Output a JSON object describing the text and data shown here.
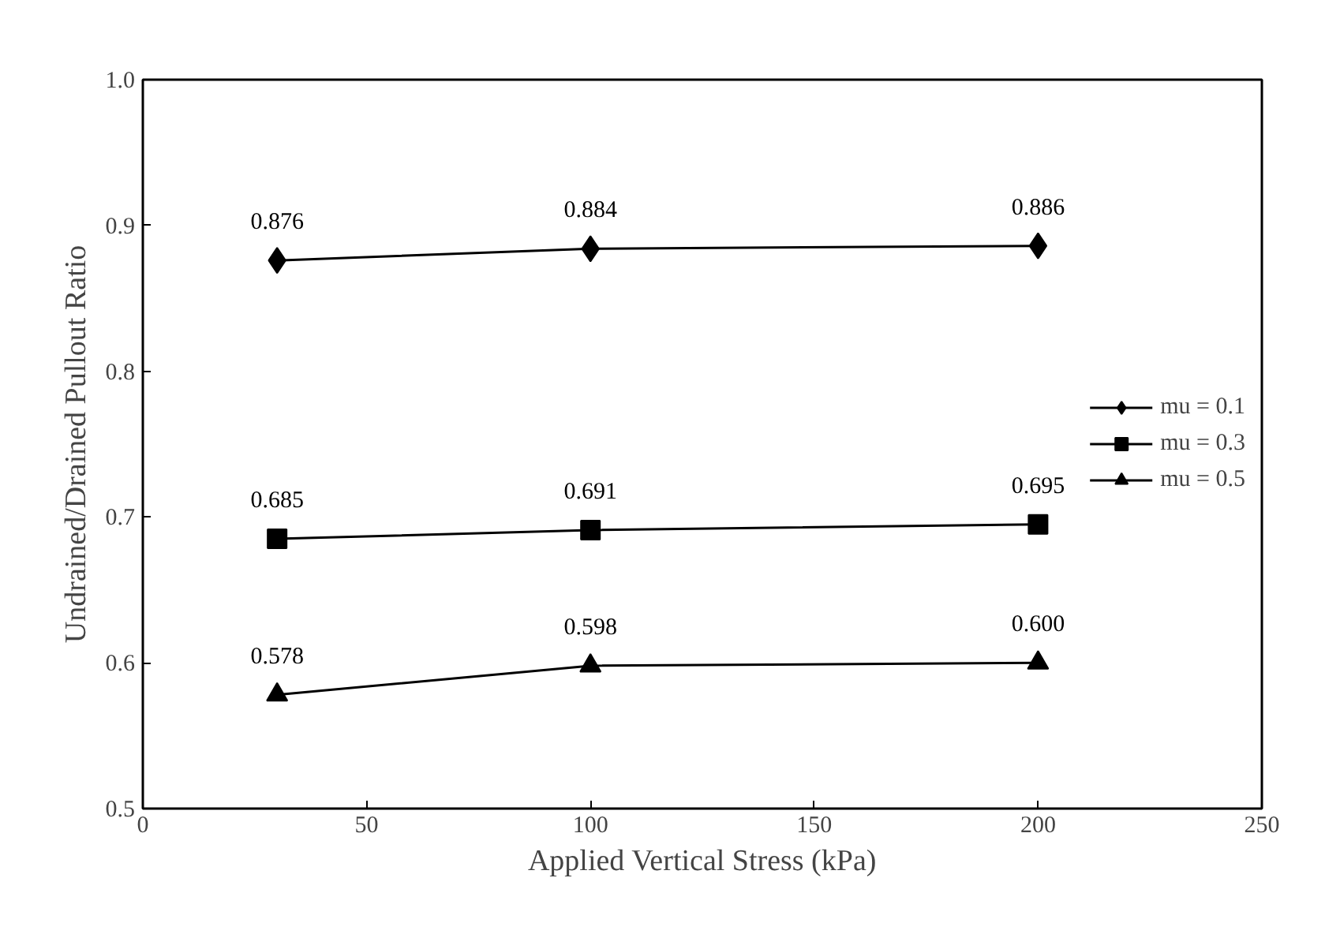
{
  "chart_data": {
    "type": "line",
    "xlabel": "Applied Vertical Stress (kPa)",
    "ylabel": "Undrained/Drained Pullout Ratio",
    "x": [
      30,
      100,
      200
    ],
    "series": [
      {
        "name": "mu = 0.1",
        "color": "#000000",
        "marker": "diamond",
        "values": [
          0.876,
          0.884,
          0.886
        ],
        "value_labels": [
          "0.876",
          "0.884",
          "0.886"
        ]
      },
      {
        "name": "mu = 0.3",
        "color": "#000000",
        "marker": "square",
        "values": [
          0.685,
          0.691,
          0.695
        ],
        "value_labels": [
          "0.685",
          "0.691",
          "0.695"
        ]
      },
      {
        "name": "mu = 0.5",
        "color": "#000000",
        "marker": "triangle",
        "values": [
          0.578,
          0.598,
          0.6
        ],
        "value_labels": [
          "0.578",
          "0.598",
          "0.600"
        ]
      }
    ],
    "xlim": [
      0,
      250
    ],
    "xticks": [
      0,
      50,
      100,
      150,
      200,
      250
    ],
    "ylim": [
      0.5,
      1.0
    ],
    "yticks": [
      {
        "value": 0.5,
        "label": "0.5"
      },
      {
        "value": 0.6,
        "label": "0.6"
      },
      {
        "value": 0.7,
        "label": "0.7"
      },
      {
        "value": 0.8,
        "label": "0.8"
      },
      {
        "value": 0.9,
        "label": "0.9"
      },
      {
        "value": 1.0,
        "label": "1.0"
      }
    ],
    "grid": false,
    "legend": "right",
    "line_style": "solid"
  }
}
